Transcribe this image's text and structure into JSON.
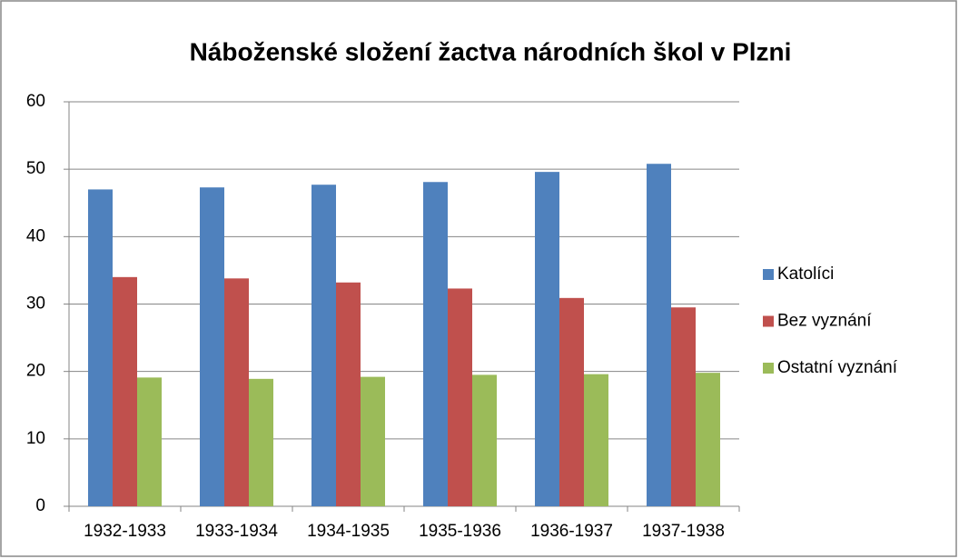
{
  "chart_data": {
    "type": "bar",
    "title": "Náboženské složení žactva národních škol v Plzni",
    "categories": [
      "1932-1933",
      "1933-1934",
      "1934-1935",
      "1935-1936",
      "1936-1937",
      "1937-1938"
    ],
    "series": [
      {
        "name": "Katolíci",
        "color": "#4f81bd",
        "values": [
          47.0,
          47.3,
          47.7,
          48.1,
          49.6,
          50.8
        ]
      },
      {
        "name": "Bez vyznání",
        "color": "#c0504d",
        "values": [
          34.0,
          33.8,
          33.2,
          32.3,
          30.9,
          29.5
        ]
      },
      {
        "name": "Ostatní vyznání",
        "color": "#9bbb59",
        "values": [
          19.1,
          18.9,
          19.2,
          19.5,
          19.6,
          19.8
        ]
      }
    ],
    "ylim": [
      0,
      60
    ],
    "yticks": [
      0,
      10,
      20,
      30,
      40,
      50,
      60
    ],
    "grid": true,
    "legend": "right"
  }
}
